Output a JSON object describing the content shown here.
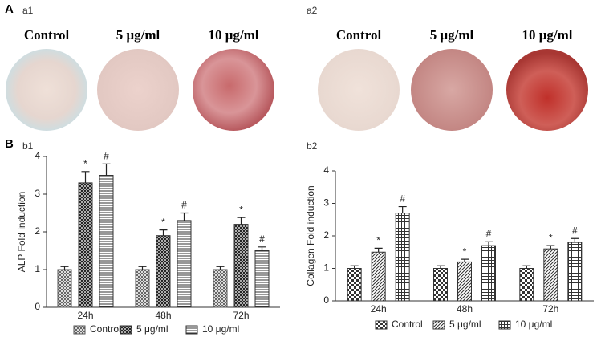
{
  "figure": {
    "panel_a": "A",
    "panel_b": "B",
    "a1": {
      "label": "a1",
      "columns": [
        "Control",
        "5 μg/ml",
        "10 μg/ml"
      ]
    },
    "a2": {
      "label": "a2",
      "columns": [
        "Control",
        "5 μg/ml",
        "10 μg/ml"
      ]
    },
    "b1": "b1",
    "b2": "b2"
  },
  "chart_data": [
    {
      "type": "bar",
      "y_label": "ALP Fold induction",
      "categories": [
        "24h",
        "48h",
        "72h"
      ],
      "ylim": [
        0,
        4
      ],
      "yticks": [
        0,
        1,
        2,
        3,
        4
      ],
      "series": [
        {
          "name": "Control",
          "color": "#555",
          "pattern": "checker",
          "values": [
            1,
            1,
            1
          ],
          "errors": [
            0.08,
            0.08,
            0.08
          ]
        },
        {
          "name": "5 μg/ml",
          "color": "#333",
          "pattern": "cross",
          "values": [
            3.3,
            1.9,
            2.2
          ],
          "errors": [
            0.3,
            0.15,
            0.18
          ],
          "annotations": [
            "*",
            "*",
            "*"
          ]
        },
        {
          "name": "10 μg/ml",
          "color": "#333",
          "pattern": "hlines",
          "values": [
            3.5,
            2.3,
            1.5
          ],
          "errors": [
            0.3,
            0.2,
            0.1
          ],
          "annotations": [
            "#",
            "#",
            "#"
          ]
        }
      ]
    },
    {
      "type": "bar",
      "y_label": "Collagen Fold induction",
      "categories": [
        "24h",
        "48h",
        "72h"
      ],
      "ylim": [
        0,
        4
      ],
      "yticks": [
        0,
        1,
        2,
        3,
        4
      ],
      "series": [
        {
          "name": "Control",
          "color": "#333",
          "pattern": "bigcheck",
          "values": [
            1,
            1,
            1
          ],
          "errors": [
            0.08,
            0.08,
            0.08
          ]
        },
        {
          "name": "5 μg/ml",
          "color": "#333",
          "pattern": "diag",
          "values": [
            1.5,
            1.2,
            1.6
          ],
          "errors": [
            0.12,
            0.08,
            0.1
          ],
          "annotations": [
            "*",
            "*",
            "*"
          ]
        },
        {
          "name": "10 μg/ml",
          "color": "#333",
          "pattern": "grid",
          "values": [
            2.7,
            1.7,
            1.8
          ],
          "errors": [
            0.2,
            0.12,
            0.12
          ],
          "annotations": [
            "#",
            "#",
            "#"
          ]
        }
      ]
    }
  ]
}
